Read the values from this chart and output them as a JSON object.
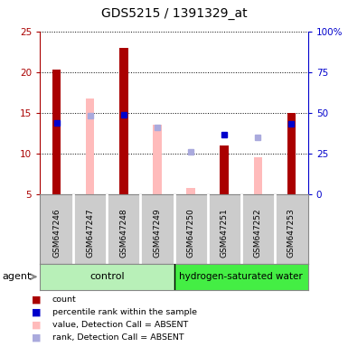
{
  "title": "GDS5215 / 1391329_at",
  "samples": [
    "GSM647246",
    "GSM647247",
    "GSM647248",
    "GSM647249",
    "GSM647250",
    "GSM647251",
    "GSM647252",
    "GSM647253"
  ],
  "red_bars": [
    20.3,
    null,
    23.0,
    null,
    null,
    11.0,
    null,
    15.0
  ],
  "pink_bars": [
    null,
    16.8,
    null,
    13.5,
    5.8,
    null,
    9.5,
    null
  ],
  "blue_squares": [
    13.8,
    null,
    14.8,
    null,
    null,
    12.3,
    null,
    13.7
  ],
  "lightblue_squares": [
    null,
    14.6,
    null,
    13.2,
    10.2,
    null,
    12.0,
    null
  ],
  "ylim_left": [
    5,
    25
  ],
  "ylim_right": [
    0,
    100
  ],
  "yticks_left": [
    5,
    10,
    15,
    20,
    25
  ],
  "yticks_right": [
    0,
    25,
    50,
    75,
    100
  ],
  "ytick_labels_right": [
    "0",
    "25",
    "50",
    "75",
    "100%"
  ],
  "left_color": "#cc0000",
  "right_color": "#0000cc",
  "red_color": "#aa0000",
  "pink_color": "#ffbbbb",
  "blue_color": "#0000cc",
  "lightblue_color": "#aaaadd",
  "control_group_color": "#b8f0b8",
  "treatment_group_color": "#44ee44",
  "sample_bg_color": "#cccccc",
  "bar_width": 0.25
}
